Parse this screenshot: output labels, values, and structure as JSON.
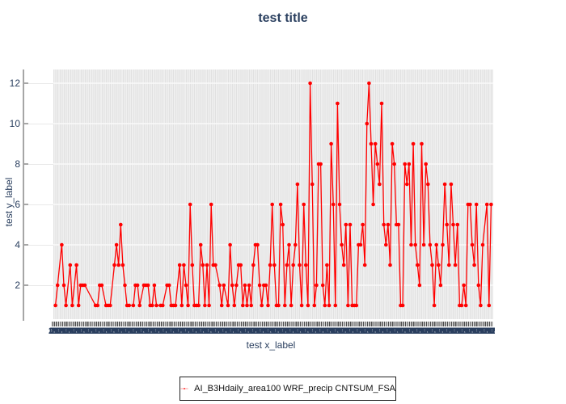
{
  "title": "test title",
  "axis": {
    "x_label": "test x_label",
    "y_label": "test y_label",
    "y_ticks": [
      "2",
      "4",
      "6",
      "8",
      "10",
      "12"
    ],
    "x_tick_labels_legible": false,
    "x_tick_texture": "2022010100 "
  },
  "legend": {
    "entries": [
      {
        "label": "AI_B3Hdaily_area100 WRF_precip CNTSUM_FSA",
        "color": "#ff0000",
        "marker": "circle-dot",
        "line": true
      }
    ]
  },
  "colors": {
    "accent_line": "#ff0000",
    "text_navy": "#2a3f5f",
    "plot_stripe_dark": "#e1e1e1",
    "plot_stripe_light": "#efefef",
    "axis_line_gray": "#a6a6a6",
    "legend_border": "#222222"
  },
  "chart_data": {
    "type": "line",
    "title": "test title",
    "xlabel": "test x_label",
    "ylabel": "test y_label",
    "yticks": [
      2,
      4,
      6,
      8,
      10,
      12
    ],
    "ylim": [
      0.3,
      12.7
    ],
    "grid": "horizontal-white-on-striped-background",
    "legend_position": "bottom-center",
    "x_axis_note": "about 200 categorical x values; tick labels overlap into an illegible navy band",
    "series": [
      {
        "name": "AI_B3Hdaily_area100 WRF_precip CNTSUM_FSA",
        "color": "#ff0000",
        "marker": "circle",
        "connectgaps": true,
        "points": [
          [
            1,
            1
          ],
          [
            2,
            2
          ],
          [
            4,
            4
          ],
          [
            5,
            2
          ],
          [
            6,
            1
          ],
          [
            8,
            3
          ],
          [
            9,
            1
          ],
          [
            11,
            3
          ],
          [
            12,
            1
          ],
          [
            13,
            2
          ],
          [
            14,
            2
          ],
          [
            15,
            2
          ],
          [
            20,
            1
          ],
          [
            21,
            1
          ],
          [
            22,
            2
          ],
          [
            23,
            2
          ],
          [
            25,
            1
          ],
          [
            26,
            1
          ],
          [
            27,
            1
          ],
          [
            29,
            3
          ],
          [
            30,
            4
          ],
          [
            31,
            3
          ],
          [
            32,
            5
          ],
          [
            33,
            3
          ],
          [
            34,
            2
          ],
          [
            35,
            1
          ],
          [
            36,
            1
          ],
          [
            38,
            1
          ],
          [
            39,
            2
          ],
          [
            40,
            2
          ],
          [
            41,
            1
          ],
          [
            43,
            2
          ],
          [
            44,
            2
          ],
          [
            45,
            2
          ],
          [
            46,
            1
          ],
          [
            47,
            1
          ],
          [
            48,
            2
          ],
          [
            49,
            1
          ],
          [
            51,
            1
          ],
          [
            52,
            1
          ],
          [
            54,
            2
          ],
          [
            55,
            2
          ],
          [
            56,
            1
          ],
          [
            57,
            1
          ],
          [
            58,
            1
          ],
          [
            60,
            3
          ],
          [
            61,
            1
          ],
          [
            62,
            3
          ],
          [
            63,
            2
          ],
          [
            64,
            1
          ],
          [
            65,
            6
          ],
          [
            66,
            3
          ],
          [
            67,
            1
          ],
          [
            68,
            1
          ],
          [
            69,
            1
          ],
          [
            70,
            4
          ],
          [
            71,
            3
          ],
          [
            72,
            1
          ],
          [
            73,
            3
          ],
          [
            74,
            1
          ],
          [
            75,
            6
          ],
          [
            76,
            3
          ],
          [
            77,
            3
          ],
          [
            79,
            2
          ],
          [
            80,
            1
          ],
          [
            81,
            2
          ],
          [
            83,
            1
          ],
          [
            84,
            4
          ],
          [
            85,
            2
          ],
          [
            86,
            1
          ],
          [
            87,
            2
          ],
          [
            88,
            3
          ],
          [
            89,
            3
          ],
          [
            90,
            1
          ],
          [
            91,
            2
          ],
          [
            92,
            1
          ],
          [
            93,
            2
          ],
          [
            94,
            1
          ],
          [
            95,
            3
          ],
          [
            96,
            4
          ],
          [
            97,
            4
          ],
          [
            98,
            2
          ],
          [
            99,
            1
          ],
          [
            100,
            2
          ],
          [
            101,
            2
          ],
          [
            102,
            1
          ],
          [
            103,
            3
          ],
          [
            104,
            6
          ],
          [
            105,
            3
          ],
          [
            106,
            1
          ],
          [
            107,
            1
          ],
          [
            108,
            6
          ],
          [
            109,
            5
          ],
          [
            110,
            1
          ],
          [
            111,
            3
          ],
          [
            112,
            4
          ],
          [
            113,
            1
          ],
          [
            114,
            3
          ],
          [
            115,
            4
          ],
          [
            116,
            7
          ],
          [
            117,
            3
          ],
          [
            118,
            1
          ],
          [
            119,
            6
          ],
          [
            120,
            3
          ],
          [
            121,
            1
          ],
          [
            122,
            12
          ],
          [
            123,
            7
          ],
          [
            124,
            1
          ],
          [
            125,
            2
          ],
          [
            126,
            8
          ],
          [
            127,
            8
          ],
          [
            128,
            2
          ],
          [
            129,
            1
          ],
          [
            130,
            3
          ],
          [
            131,
            1
          ],
          [
            132,
            9
          ],
          [
            133,
            6
          ],
          [
            134,
            1
          ],
          [
            135,
            11
          ],
          [
            136,
            6
          ],
          [
            137,
            4
          ],
          [
            138,
            3
          ],
          [
            139,
            5
          ],
          [
            140,
            1
          ],
          [
            141,
            5
          ],
          [
            142,
            1
          ],
          [
            143,
            1
          ],
          [
            144,
            1
          ],
          [
            145,
            4
          ],
          [
            146,
            4
          ],
          [
            147,
            5
          ],
          [
            148,
            3
          ],
          [
            149,
            10
          ],
          [
            150,
            12
          ],
          [
            151,
            9
          ],
          [
            152,
            6
          ],
          [
            153,
            9
          ],
          [
            154,
            8
          ],
          [
            155,
            7
          ],
          [
            156,
            11
          ],
          [
            157,
            5
          ],
          [
            158,
            4
          ],
          [
            159,
            5
          ],
          [
            160,
            3
          ],
          [
            161,
            9
          ],
          [
            162,
            8
          ],
          [
            163,
            5
          ],
          [
            164,
            5
          ],
          [
            165,
            1
          ],
          [
            166,
            1
          ],
          [
            167,
            8
          ],
          [
            168,
            7
          ],
          [
            169,
            8
          ],
          [
            170,
            4
          ],
          [
            171,
            9
          ],
          [
            172,
            4
          ],
          [
            173,
            3
          ],
          [
            174,
            2
          ],
          [
            175,
            9
          ],
          [
            176,
            4
          ],
          [
            177,
            8
          ],
          [
            178,
            7
          ],
          [
            179,
            4
          ],
          [
            180,
            3
          ],
          [
            181,
            1
          ],
          [
            182,
            4
          ],
          [
            183,
            3
          ],
          [
            184,
            2
          ],
          [
            185,
            4
          ],
          [
            186,
            7
          ],
          [
            187,
            5
          ],
          [
            188,
            3
          ],
          [
            189,
            7
          ],
          [
            190,
            5
          ],
          [
            191,
            3
          ],
          [
            192,
            5
          ],
          [
            193,
            1
          ],
          [
            194,
            1
          ],
          [
            195,
            2
          ],
          [
            196,
            1
          ],
          [
            197,
            6
          ],
          [
            198,
            6
          ],
          [
            199,
            4
          ],
          [
            200,
            3
          ],
          [
            201,
            6
          ],
          [
            202,
            2
          ],
          [
            203,
            1
          ],
          [
            204,
            4
          ],
          [
            206,
            6
          ],
          [
            207,
            1
          ],
          [
            208,
            6
          ]
        ]
      }
    ]
  }
}
